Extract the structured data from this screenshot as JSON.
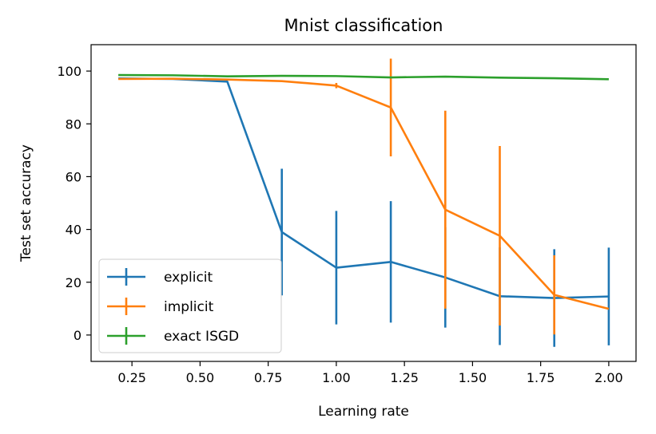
{
  "chart_data": {
    "type": "line",
    "title": "Mnist classification",
    "xlabel": "Learning rate",
    "ylabel": "Test set accuracy",
    "xlim": [
      0.1,
      2.1
    ],
    "ylim": [
      -10,
      110
    ],
    "xticks": [
      0.25,
      0.5,
      0.75,
      1.0,
      1.25,
      1.5,
      1.75,
      2.0
    ],
    "xtick_labels": [
      "0.25",
      "0.50",
      "0.75",
      "1.00",
      "1.25",
      "1.50",
      "1.75",
      "2.00"
    ],
    "yticks": [
      0,
      20,
      40,
      60,
      80,
      100
    ],
    "ytick_labels": [
      "0",
      "20",
      "40",
      "60",
      "80",
      "100"
    ],
    "legend_position": "lower-left",
    "series": [
      {
        "name": "explicit",
        "color": "#1f77b4",
        "x": [
          0.2,
          0.4,
          0.6,
          0.8,
          1.0,
          1.2,
          1.4,
          1.6,
          1.8,
          2.0
        ],
        "y": [
          97.2,
          97.0,
          96.0,
          39.0,
          25.5,
          27.7,
          21.8,
          14.7,
          14.0,
          14.6
        ],
        "err": [
          0,
          0,
          0,
          24,
          21.5,
          23,
          19,
          18.5,
          18.5,
          18.5
        ]
      },
      {
        "name": "implicit",
        "color": "#ff7f0e",
        "x": [
          0.2,
          0.4,
          0.6,
          0.8,
          1.0,
          1.2,
          1.4,
          1.6,
          1.8,
          2.0
        ],
        "y": [
          97.0,
          97.1,
          96.8,
          96.2,
          94.5,
          86.2,
          47.5,
          37.6,
          15.2,
          9.9
        ],
        "err": [
          0,
          0,
          0,
          0,
          1.0,
          18.5,
          37.5,
          34,
          15,
          0
        ]
      },
      {
        "name": "exact ISGD",
        "color": "#2ca02c",
        "x": [
          0.2,
          0.4,
          0.6,
          0.8,
          1.0,
          1.2,
          1.4,
          1.6,
          1.8,
          2.0
        ],
        "y": [
          98.5,
          98.4,
          98.0,
          98.2,
          98.1,
          97.6,
          97.9,
          97.5,
          97.3,
          96.9
        ],
        "err": [
          0,
          0,
          0,
          0,
          0,
          0,
          0,
          0,
          0,
          0
        ]
      }
    ]
  }
}
